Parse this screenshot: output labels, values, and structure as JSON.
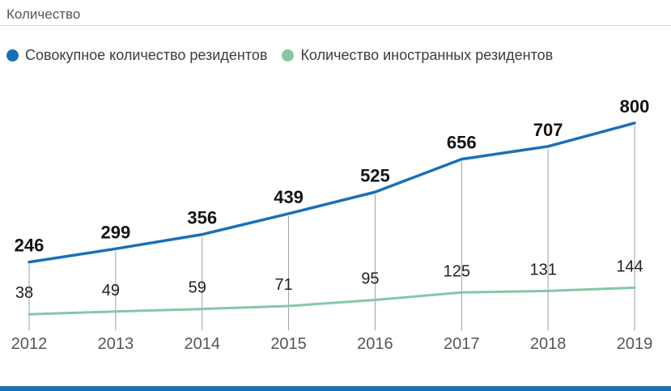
{
  "header": {
    "title": "Количество"
  },
  "legend": [
    {
      "label": "Совокупное количество резидентов",
      "color": "#1a70b8"
    },
    {
      "label": "Количество иностранных резидентов",
      "color": "#85c8a4"
    }
  ],
  "chart_data": {
    "type": "line",
    "x": [
      "2012",
      "2013",
      "2014",
      "2015",
      "2016",
      "2017",
      "2018",
      "2019"
    ],
    "series": [
      {
        "name": "Совокупное количество резидентов",
        "color": "#1a70b8",
        "values": [
          246,
          299,
          356,
          439,
          525,
          656,
          707,
          800
        ],
        "label_style": "bold"
      },
      {
        "name": "Количество иностранных резидентов",
        "color": "#85c8a4",
        "values": [
          38,
          49,
          59,
          71,
          95,
          125,
          131,
          144
        ],
        "label_style": "regular"
      }
    ],
    "title": "Количество",
    "xlabel": "",
    "ylabel": "",
    "ylim": [
      0,
      870
    ],
    "grid": "vertical-ticks-at-points",
    "legend_position": "top-left",
    "data_labels": "shown"
  },
  "colors": {
    "accent_bar": "#1a70b8",
    "tick_line": "#9a9fa3",
    "axis_text": "#565656",
    "value_text": "#141414",
    "divider": "#d8d8d8"
  }
}
